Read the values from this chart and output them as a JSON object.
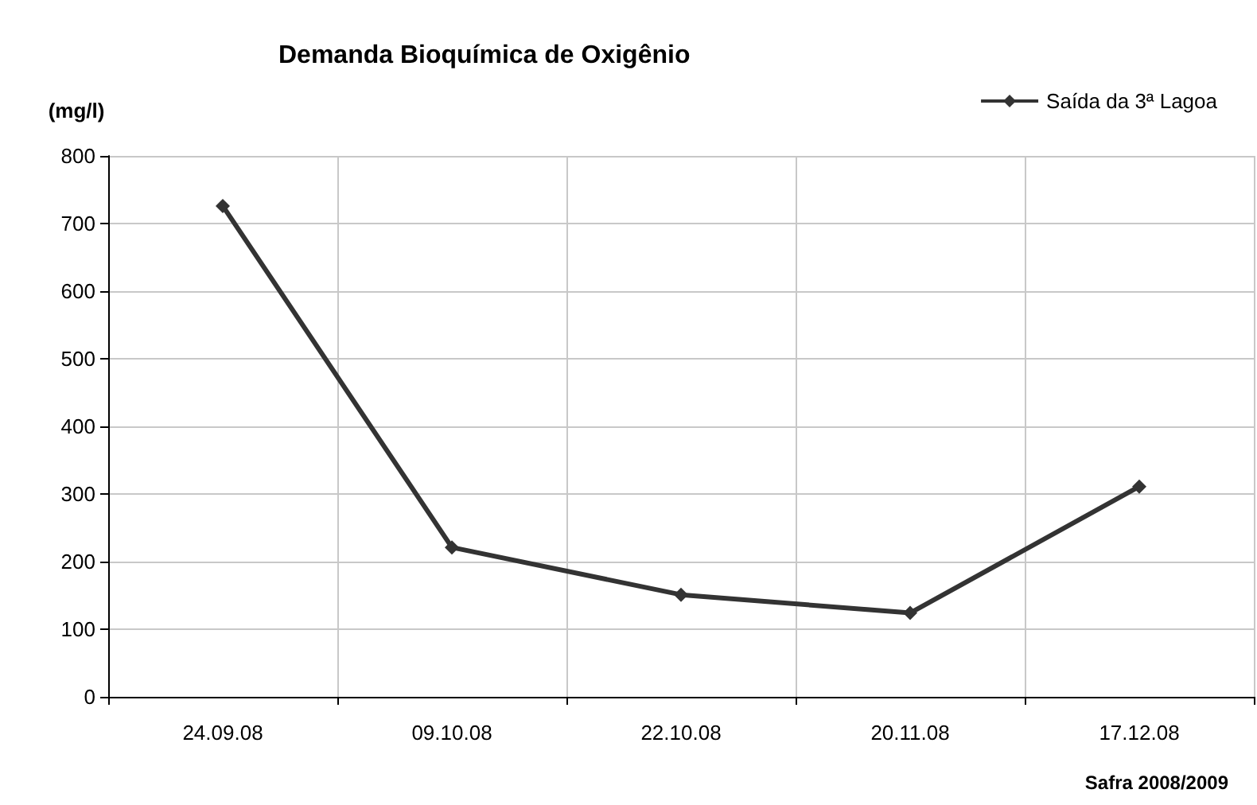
{
  "chart_data": {
    "type": "line",
    "title": "Demanda Bioquímica de Oxigênio",
    "ylabel": "(mg/l)",
    "annotations": [
      "Safra 2008/2009"
    ],
    "categories": [
      "24.09.08",
      "09.10.08",
      "22.10.08",
      "20.11.08",
      "17.12.08"
    ],
    "series": [
      {
        "name": "Saída da 3ª Lagoa",
        "color": "#333333",
        "values": [
          726,
          221,
          151,
          124,
          311
        ]
      }
    ],
    "ylim": [
      0,
      800
    ],
    "yticks": [
      0,
      100,
      200,
      300,
      400,
      500,
      600,
      700,
      800
    ],
    "grid": true,
    "legend": "top right",
    "marker": "diamond",
    "line_style": "solid"
  }
}
